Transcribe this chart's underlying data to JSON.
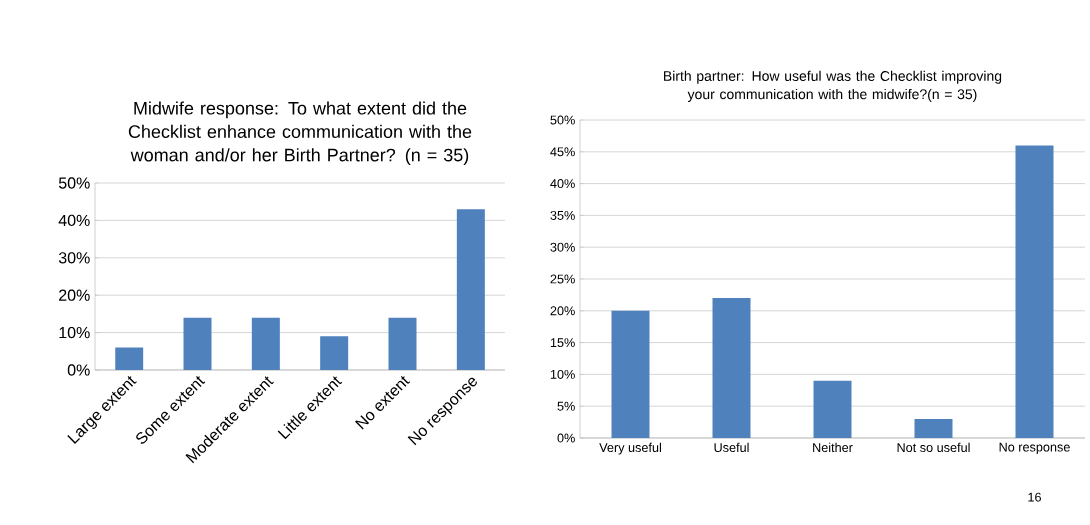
{
  "chart_data": [
    {
      "type": "bar",
      "title": "Midwife response: To what extent did the Checklist enhance communication with the woman and/or her Birth Partner? (n = 35)",
      "categories": [
        "Large extent",
        "Some extent",
        "Moderate extent",
        "Little extent",
        "No extent",
        "No response"
      ],
      "values": [
        6,
        14,
        14,
        9,
        14,
        43
      ],
      "color": "#4f81bd",
      "ylim": [
        0,
        50
      ],
      "yticks": [
        {
          "value": 0,
          "label": "0%"
        },
        {
          "value": 10,
          "label": "10%"
        },
        {
          "value": 20,
          "label": "20%"
        },
        {
          "value": 30,
          "label": "30%"
        },
        {
          "value": 40,
          "label": "40%"
        },
        {
          "value": 50,
          "label": "50%"
        }
      ],
      "grid": "y"
    },
    {
      "type": "bar",
      "title": "Birth partner: How useful was the Checklist improving your communication with the midwife?(n = 35)",
      "categories": [
        "Very useful",
        "Useful",
        "Neither",
        "Not so useful",
        "No response"
      ],
      "values": [
        20,
        22,
        9,
        3,
        46
      ],
      "color": "#4f81bd",
      "ylim": [
        0,
        50
      ],
      "yticks": [
        {
          "value": 0,
          "label": "0%"
        },
        {
          "value": 5,
          "label": "5%"
        },
        {
          "value": 10,
          "label": "10%"
        },
        {
          "value": 15,
          "label": "15%"
        },
        {
          "value": 20,
          "label": "20%"
        },
        {
          "value": 25,
          "label": "25%"
        },
        {
          "value": 30,
          "label": "30%"
        },
        {
          "value": 35,
          "label": "35%"
        },
        {
          "value": 40,
          "label": "40%"
        },
        {
          "value": 45,
          "label": "45%"
        },
        {
          "value": 50,
          "label": "50%"
        }
      ],
      "grid": "y",
      "annotations": [
        "16"
      ]
    }
  ]
}
